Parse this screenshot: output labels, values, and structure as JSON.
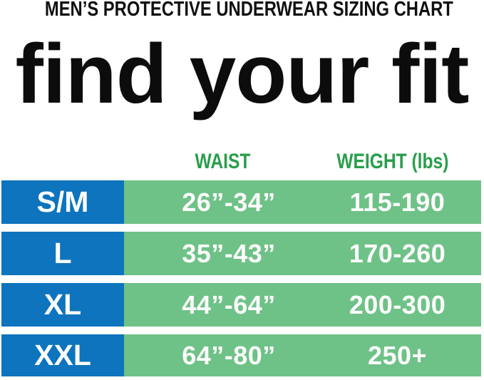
{
  "header": {
    "kicker": "MEN’S PROTECTIVE UNDERWEAR SIZING CHART",
    "headline": "find your fit"
  },
  "colors": {
    "size_column_blue": "#0D74BD",
    "data_column_green": "#6FC287",
    "header_text_green": "#2A9E4C",
    "title_black": "#101010",
    "cell_text_white": "#FFFFFF",
    "background": "#FFFFFF"
  },
  "chart_data": {
    "type": "table",
    "title": "MEN’S PROTECTIVE UNDERWEAR SIZING CHART",
    "subtitle": "find your fit",
    "columns": [
      "",
      "WAIST",
      "WEIGHT (lbs)"
    ],
    "rows": [
      {
        "size": "S/M",
        "waist": "26”-34”",
        "weight": "115-190"
      },
      {
        "size": "L",
        "waist": "35”-43”",
        "weight": "170-260"
      },
      {
        "size": "XL",
        "waist": "44”-64”",
        "weight": "200-300"
      },
      {
        "size": "XXL",
        "waist": "64”-80”",
        "weight": "250+"
      }
    ],
    "layout": {
      "grid": "off",
      "legend": "none",
      "size_column_style": "white bold text on blue",
      "data_columns_style": "white bold text on green",
      "row_separator": "white gap"
    }
  }
}
